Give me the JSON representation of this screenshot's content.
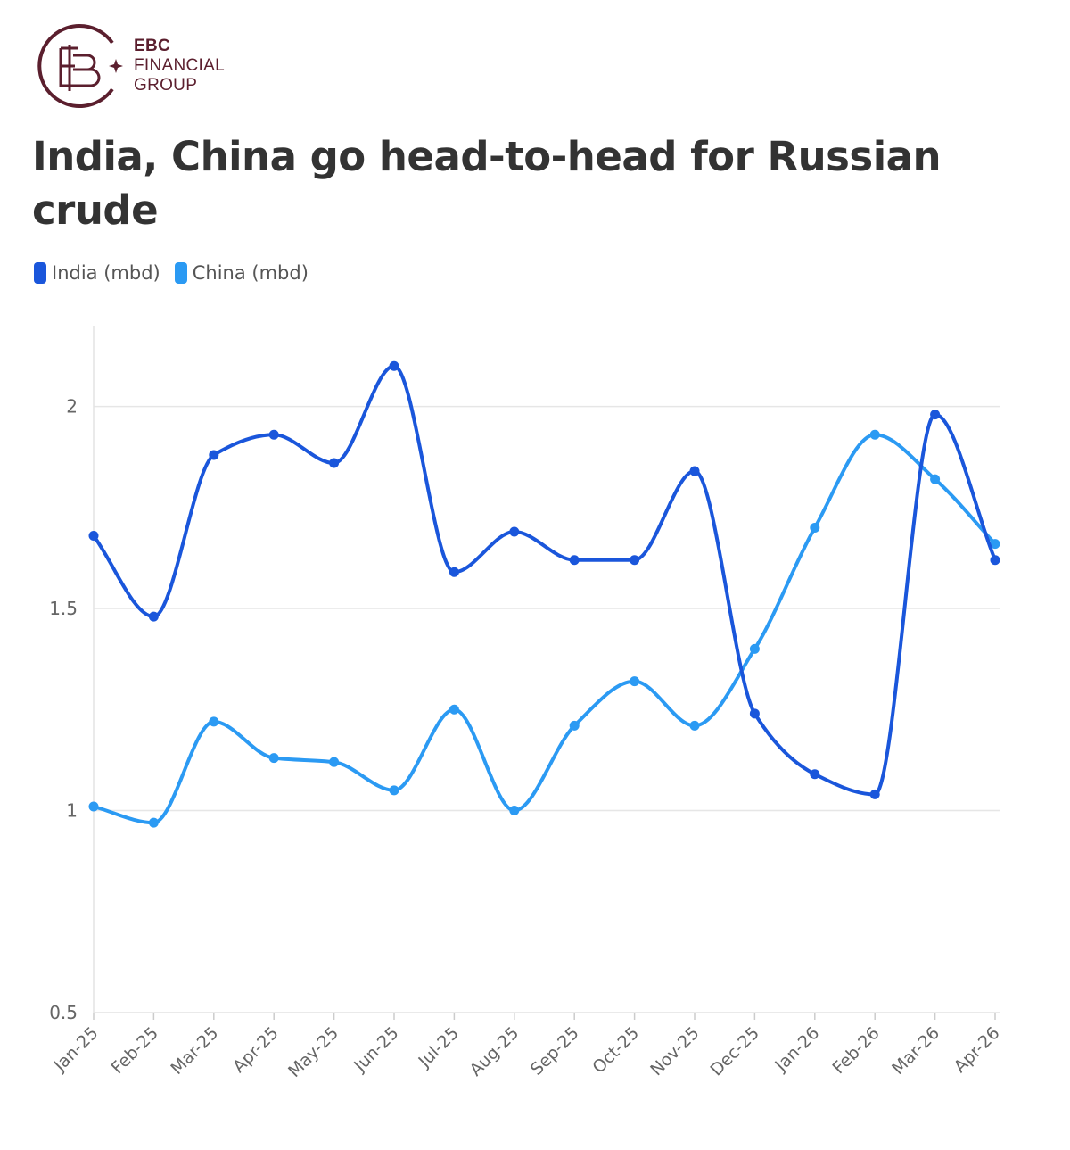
{
  "logo": {
    "brand": "EBC",
    "line2": "FINANCIAL",
    "line3": "GROUP",
    "color": "#5b1f2e"
  },
  "chart_data": {
    "type": "line",
    "title": "India, China go head-to-head for Russian crude",
    "xlabel": "",
    "ylabel": "",
    "categories": [
      "Jan-25",
      "Feb-25",
      "Mar-25",
      "Apr-25",
      "May-25",
      "Jun-25",
      "Jul-25",
      "Aug-25",
      "Sep-25",
      "Oct-25",
      "Nov-25",
      "Dec-25",
      "Jan-26",
      "Feb-26",
      "Mar-26",
      "Apr-26"
    ],
    "series": [
      {
        "name": "India (mbd)",
        "color": "#1a56db",
        "values": [
          1.68,
          1.48,
          1.88,
          1.93,
          1.86,
          2.1,
          1.59,
          1.69,
          1.62,
          1.62,
          1.84,
          1.24,
          1.09,
          1.04,
          1.98,
          1.62
        ]
      },
      {
        "name": "China (mbd)",
        "color": "#2b9af3",
        "values": [
          1.01,
          0.97,
          1.22,
          1.13,
          1.12,
          1.05,
          1.25,
          1.0,
          1.21,
          1.32,
          1.21,
          1.4,
          1.7,
          1.93,
          1.82,
          1.66
        ]
      }
    ],
    "ylim": [
      0.5,
      2.2
    ],
    "yticks": [
      0.5,
      1,
      1.5,
      2
    ],
    "ytick_labels": [
      "0.5",
      "1",
      "1.5",
      "2"
    ],
    "grid": true,
    "legend": "top-left",
    "smooth": true
  }
}
